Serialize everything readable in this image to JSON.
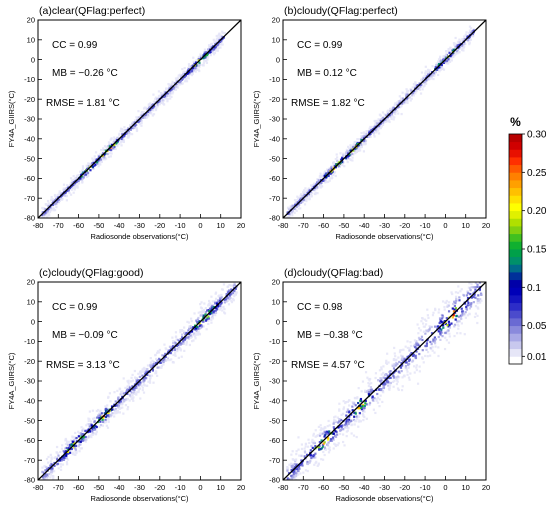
{
  "figure": {
    "colorbar": {
      "title": "%",
      "tick_labels": [
        "0.30",
        "0.25",
        "0.20",
        "0.15",
        "0.1",
        "0.05",
        "0.01"
      ],
      "tick_values": [
        0.3,
        0.25,
        0.2,
        0.15,
        0.1,
        0.05,
        0.01
      ],
      "colors": [
        "#ffffff",
        "#e6e6f7",
        "#c8c8ee",
        "#a9a9e6",
        "#8a8adc",
        "#6a6ad3",
        "#4b4bcc",
        "#2d2dc8",
        "#1414c0",
        "#0000b8",
        "#0000a8",
        "#00309a",
        "#006a8a",
        "#00906a",
        "#00a04a",
        "#10b030",
        "#40c020",
        "#80d010",
        "#b0e000",
        "#e0f000",
        "#ffff00",
        "#ffe000",
        "#ffc000",
        "#ffa000",
        "#ff8000",
        "#ff5a00",
        "#ff3000",
        "#e81000",
        "#d00000",
        "#b80000"
      ],
      "min": 0.0,
      "max": 0.3
    }
  },
  "chart_data": [
    {
      "type": "heatmap",
      "panel_label": "(a)clear(QFlag:perfect)",
      "xlabel": "Radiosonde observations(°C)",
      "ylabel": "FY4A_GIIRS(°C)",
      "xlim": [
        -80,
        20
      ],
      "ylim": [
        -80,
        20
      ],
      "x_ticks": [
        -80,
        -70,
        -60,
        -50,
        -40,
        -30,
        -20,
        -10,
        0,
        10,
        20
      ],
      "y_ticks": [
        -80,
        -70,
        -60,
        -50,
        -40,
        -30,
        -20,
        -10,
        0,
        10,
        20
      ],
      "stats": {
        "cc": "CC = 0.99",
        "mb": "MB = −0.26 °C",
        "rmse": "RMSE = 1.81 °C"
      },
      "reference_line": "y = x",
      "x_range_of_data": [
        -78,
        12
      ],
      "spread": 2.0,
      "bias": -0.26,
      "hotspots": [
        -55,
        -45,
        0
      ]
    },
    {
      "type": "heatmap",
      "panel_label": "(b)cloudy(QFlag:perfect)",
      "xlabel": "Radiosonde observations(°C)",
      "ylabel": "FY4A_GIIRS(°C)",
      "xlim": [
        -80,
        20
      ],
      "ylim": [
        -80,
        20
      ],
      "x_ticks": [
        -80,
        -70,
        -60,
        -50,
        -40,
        -30,
        -20,
        -10,
        0,
        10,
        20
      ],
      "y_ticks": [
        -80,
        -70,
        -60,
        -50,
        -40,
        -30,
        -20,
        -10,
        0,
        10,
        20
      ],
      "stats": {
        "cc": "CC = 0.99",
        "mb": "MB = 0.12 °C",
        "rmse": "RMSE = 1.82 °C"
      },
      "reference_line": "y = x",
      "x_range_of_data": [
        -78,
        14
      ],
      "spread": 2.0,
      "bias": 0.12,
      "hotspots": [
        -55,
        -45,
        0
      ]
    },
    {
      "type": "heatmap",
      "panel_label": "(c)cloudy(QFlag:good)",
      "xlabel": "Radiosonde observations(°C)",
      "ylabel": "FY4A_GIIRS(°C)",
      "xlim": [
        -80,
        20
      ],
      "ylim": [
        -80,
        20
      ],
      "x_ticks": [
        -80,
        -70,
        -60,
        -50,
        -40,
        -30,
        -20,
        -10,
        0,
        10,
        20
      ],
      "y_ticks": [
        -80,
        -70,
        -60,
        -50,
        -40,
        -30,
        -20,
        -10,
        0,
        10,
        20
      ],
      "stats": {
        "cc": "CC = 0.99",
        "mb": "MB = −0.09 °C",
        "rmse": "RMSE = 3.13 °C"
      },
      "reference_line": "y = x",
      "x_range_of_data": [
        -78,
        18
      ],
      "spread": 3.5,
      "bias": -0.09,
      "hotspots": [
        -62,
        -48,
        2
      ]
    },
    {
      "type": "heatmap",
      "panel_label": "(d)cloudy(QFlag:bad)",
      "xlabel": "Radiosonde observations(°C)",
      "ylabel": "FY4A_GIIRS(°C)",
      "xlim": [
        -80,
        20
      ],
      "ylim": [
        -80,
        20
      ],
      "x_ticks": [
        -80,
        -70,
        -60,
        -50,
        -40,
        -30,
        -20,
        -10,
        0,
        10,
        20
      ],
      "y_ticks": [
        -80,
        -70,
        -60,
        -50,
        -40,
        -30,
        -20,
        -10,
        0,
        10,
        20
      ],
      "stats": {
        "cc": "CC = 0.98",
        "mb": "MB = −0.38 °C",
        "rmse": "RMSE = 4.57 °C"
      },
      "reference_line": "y = x",
      "x_range_of_data": [
        -78,
        18
      ],
      "spread": 5.0,
      "bias": -0.38,
      "hotspots": [
        -60,
        -42,
        3
      ]
    }
  ]
}
